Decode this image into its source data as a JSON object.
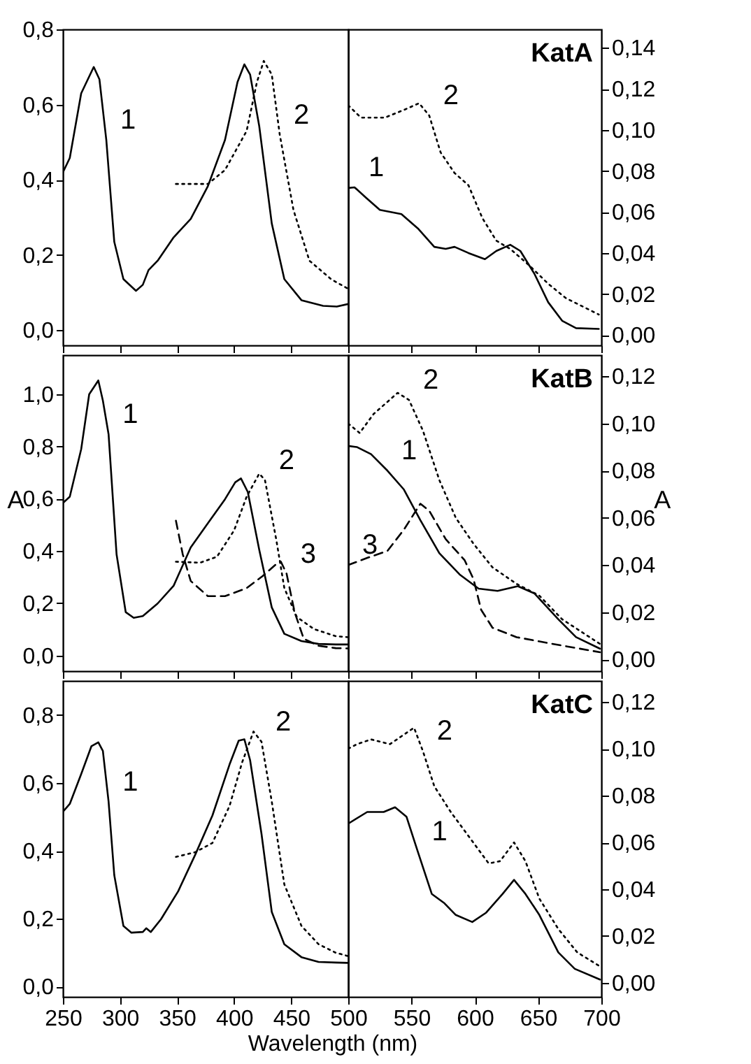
{
  "chart_data": [
    {
      "type": "line",
      "xlim": [
        250,
        500
      ],
      "xticks": [
        250,
        300,
        350,
        400,
        450
      ],
      "ylim": [
        -0.04,
        0.8
      ],
      "yticks": [
        {
          "value": 0,
          "label": "0,0"
        },
        {
          "value": 0.2,
          "label": "0,2"
        },
        {
          "value": 0.4,
          "label": "0,4"
        },
        {
          "value": 0.6,
          "label": "0,6"
        },
        {
          "value": 0.8,
          "label": "0,8"
        }
      ],
      "tick_labels": "y",
      "grid": false,
      "series": [
        {
          "color": "#000000",
          "line_style": "solid",
          "x": [
            250,
            256,
            266,
            277,
            282,
            288,
            295,
            303,
            314,
            320,
            325,
            333,
            347,
            362,
            377,
            392,
            403,
            409,
            414,
            422,
            433,
            444,
            459,
            478,
            490,
            500
          ],
          "values": [
            0.42,
            0.458,
            0.63,
            0.7,
            0.667,
            0.506,
            0.235,
            0.136,
            0.105,
            0.121,
            0.16,
            0.185,
            0.247,
            0.296,
            0.383,
            0.506,
            0.66,
            0.707,
            0.68,
            0.543,
            0.284,
            0.136,
            0.08,
            0.065,
            0.063,
            0.07
          ]
        },
        {
          "color": "#000000",
          "line_style": "dotted",
          "x": [
            349,
            377,
            392,
            411,
            420,
            426,
            433,
            440,
            452,
            466,
            485,
            500
          ],
          "values": [
            0.389,
            0.389,
            0.426,
            0.53,
            0.66,
            0.716,
            0.68,
            0.52,
            0.32,
            0.185,
            0.136,
            0.11
          ]
        }
      ],
      "annotations": [
        {
          "text": "1",
          "x": 288,
          "y": 0.506
        },
        {
          "text": "2",
          "x": 440,
          "y": 0.52
        }
      ]
    },
    {
      "type": "line",
      "title": "KatA",
      "xlim": [
        500,
        700
      ],
      "xticks": [
        500,
        550,
        600,
        650,
        700
      ],
      "ylim": [
        -0.005,
        0.149
      ],
      "yticks": [
        {
          "value": 0,
          "label": "0,00"
        },
        {
          "value": 0.02,
          "label": "0,02"
        },
        {
          "value": 0.04,
          "label": "0,04"
        },
        {
          "value": 0.06,
          "label": "0,06"
        },
        {
          "value": 0.08,
          "label": "0,08"
        },
        {
          "value": 0.1,
          "label": "0,10"
        },
        {
          "value": 0.12,
          "label": "0,12"
        },
        {
          "value": 0.14,
          "label": "0,14"
        }
      ],
      "tick_labels": "y",
      "grid": false,
      "series": [
        {
          "color": "#000000",
          "line_style": "solid",
          "x": [
            500,
            505,
            514,
            525,
            542,
            555,
            568,
            577,
            584,
            595,
            608,
            617,
            628,
            636,
            647,
            658,
            669,
            680,
            698
          ],
          "values": [
            0.0717,
            0.072,
            0.067,
            0.061,
            0.059,
            0.052,
            0.043,
            0.042,
            0.043,
            0.04,
            0.037,
            0.041,
            0.044,
            0.041,
            0.03,
            0.016,
            0.007,
            0.0034,
            0.003
          ]
        },
        {
          "color": "#000000",
          "line_style": "dotted",
          "x": [
            500,
            510,
            529,
            545,
            556,
            564,
            573,
            584,
            595,
            606,
            617,
            628,
            643,
            658,
            672,
            698
          ],
          "values": [
            0.112,
            0.106,
            0.106,
            0.11,
            0.113,
            0.107,
            0.089,
            0.079,
            0.073,
            0.057,
            0.046,
            0.042,
            0.034,
            0.025,
            0.018,
            0.01
          ]
        }
      ],
      "annotations": [
        {
          "text": "1",
          "x": 505,
          "y": 0.072
        },
        {
          "text": "2",
          "x": 564,
          "y": 0.107
        }
      ]
    },
    {
      "type": "line",
      "xlim": [
        250,
        500
      ],
      "xticks": [
        250,
        300,
        350,
        400,
        450
      ],
      "ylim": [
        -0.06,
        1.15
      ],
      "yticks": [
        {
          "value": 0,
          "label": "0,0"
        },
        {
          "value": 0.2,
          "label": "0,2"
        },
        {
          "value": 0.4,
          "label": "0,4"
        },
        {
          "value": 0.6,
          "label": "0,6"
        },
        {
          "value": 0.8,
          "label": "0,8"
        },
        {
          "value": 1,
          "label": "1,0"
        }
      ],
      "ylabel": "A",
      "tick_labels": "y",
      "grid": false,
      "series": [
        {
          "color": "#000000",
          "line_style": "solid",
          "x": [
            250,
            256,
            266,
            273,
            281,
            285,
            290,
            297,
            305,
            312,
            320,
            333,
            347,
            362,
            377,
            392,
            401,
            406,
            412,
            422,
            433,
            444,
            459,
            474,
            489,
            500
          ],
          "values": [
            0.584,
            0.608,
            0.79,
            1.0,
            1.053,
            0.976,
            0.847,
            0.387,
            0.166,
            0.144,
            0.151,
            0.199,
            0.267,
            0.414,
            0.506,
            0.598,
            0.663,
            0.678,
            0.626,
            0.405,
            0.184,
            0.083,
            0.055,
            0.044,
            0.042,
            0.042
          ]
        },
        {
          "color": "#000000",
          "line_style": "dotted",
          "x": [
            349,
            370,
            385,
            400,
            411,
            422,
            427,
            437,
            444,
            455,
            470,
            489,
            500
          ],
          "values": [
            0.359,
            0.355,
            0.378,
            0.479,
            0.608,
            0.696,
            0.672,
            0.442,
            0.258,
            0.147,
            0.101,
            0.074,
            0.07
          ]
        },
        {
          "color": "#000000",
          "line_style": "dashed",
          "x": [
            349,
            355,
            362,
            377,
            392,
            411,
            425,
            437,
            441,
            446,
            453,
            461,
            474,
            489,
            500
          ],
          "values": [
            0.516,
            0.387,
            0.285,
            0.227,
            0.227,
            0.258,
            0.304,
            0.35,
            0.359,
            0.313,
            0.166,
            0.064,
            0.037,
            0.028,
            0.027
          ]
        }
      ],
      "annotations": [
        {
          "text": "1",
          "x": 290,
          "y": 0.847
        },
        {
          "text": "2",
          "x": 427,
          "y": 0.672
        },
        {
          "text": "3",
          "x": 446,
          "y": 0.313
        }
      ]
    },
    {
      "type": "line",
      "title": "KatB",
      "xlim": [
        500,
        700
      ],
      "xticks": [
        500,
        550,
        600,
        650,
        700
      ],
      "ylim": [
        -0.005,
        0.129
      ],
      "yticks": [
        {
          "value": 0,
          "label": "0,00"
        },
        {
          "value": 0.02,
          "label": "0,02"
        },
        {
          "value": 0.04,
          "label": "0,04"
        },
        {
          "value": 0.06,
          "label": "0,06"
        },
        {
          "value": 0.08,
          "label": "0,08"
        },
        {
          "value": 0.1,
          "label": "0,10"
        },
        {
          "value": 0.12,
          "label": "0,12"
        }
      ],
      "ylabel": "A",
      "tick_labels": "y",
      "grid": false,
      "series": [
        {
          "color": "#000000",
          "line_style": "solid",
          "x": [
            500,
            507,
            518,
            531,
            544,
            557,
            572,
            588,
            603,
            618,
            634,
            647,
            666,
            680,
            699
          ],
          "values": [
            0.0905,
            0.09,
            0.087,
            0.08,
            0.072,
            0.059,
            0.045,
            0.036,
            0.03,
            0.029,
            0.031,
            0.028,
            0.017,
            0.0094,
            0.0045
          ]
        },
        {
          "color": "#000000",
          "line_style": "dotted",
          "x": [
            500,
            509,
            520,
            539,
            548,
            559,
            572,
            585,
            599,
            614,
            633,
            651,
            669,
            699
          ],
          "values": [
            0.1,
            0.096,
            0.104,
            0.113,
            0.11,
            0.097,
            0.076,
            0.06,
            0.049,
            0.039,
            0.032,
            0.027,
            0.017,
            0.0065
          ]
        },
        {
          "color": "#000000",
          "line_style": "dashed",
          "x": [
            500,
            515,
            531,
            544,
            557,
            564,
            577,
            592,
            599,
            605,
            614,
            633,
            662,
            699
          ],
          "values": [
            0.04,
            0.043,
            0.046,
            0.055,
            0.066,
            0.063,
            0.051,
            0.042,
            0.034,
            0.021,
            0.0134,
            0.0094,
            0.0065,
            0.003
          ]
        }
      ],
      "annotations": [
        {
          "text": "1",
          "x": 531,
          "y": 0.08
        },
        {
          "text": "2",
          "x": 548,
          "y": 0.11
        },
        {
          "text": "3",
          "x": 500,
          "y": 0.04
        }
      ]
    },
    {
      "type": "line",
      "xlim": [
        250,
        500
      ],
      "xticks": [
        250,
        300,
        350,
        400,
        450
      ],
      "ylim": [
        -0.03,
        0.9
      ],
      "yticks": [
        {
          "value": 0,
          "label": "0,0"
        },
        {
          "value": 0.2,
          "label": "0,2"
        },
        {
          "value": 0.4,
          "label": "0,4"
        },
        {
          "value": 0.6,
          "label": "0,6"
        },
        {
          "value": 0.8,
          "label": "0,8"
        }
      ],
      "xlabel": "Wavelength (nm)",
      "grid": false,
      "series": [
        {
          "color": "#000000",
          "line_style": "solid",
          "x": [
            250,
            256,
            266,
            275,
            281,
            285,
            290,
            295,
            303,
            310,
            320,
            323,
            327,
            336,
            351,
            366,
            381,
            396,
            404,
            409,
            414,
            424,
            433,
            444,
            459,
            474,
            489,
            500
          ],
          "values": [
            0.515,
            0.538,
            0.626,
            0.708,
            0.719,
            0.694,
            0.545,
            0.328,
            0.179,
            0.159,
            0.161,
            0.172,
            0.161,
            0.199,
            0.281,
            0.389,
            0.504,
            0.654,
            0.724,
            0.728,
            0.667,
            0.45,
            0.22,
            0.125,
            0.087,
            0.073,
            0.071,
            0.07
          ]
        },
        {
          "color": "#000000",
          "line_style": "dotted",
          "x": [
            349,
            366,
            381,
            396,
            407,
            417,
            424,
            433,
            444,
            459,
            474,
            489,
            500
          ],
          "values": [
            0.382,
            0.396,
            0.423,
            0.532,
            0.66,
            0.751,
            0.721,
            0.545,
            0.301,
            0.179,
            0.125,
            0.1,
            0.09
          ]
        }
      ],
      "annotations": [
        {
          "text": "1",
          "x": 290,
          "y": 0.545
        },
        {
          "text": "2",
          "x": 424,
          "y": 0.721
        }
      ]
    },
    {
      "type": "line",
      "title": "KatC",
      "xlim": [
        500,
        700
      ],
      "xticks": [
        500,
        550,
        600,
        650,
        700
      ],
      "ylim": [
        -0.006,
        0.129
      ],
      "yticks": [
        {
          "value": 0,
          "label": "0,00"
        },
        {
          "value": 0.02,
          "label": "0,02"
        },
        {
          "value": 0.04,
          "label": "0,04"
        },
        {
          "value": 0.06,
          "label": "0,06"
        },
        {
          "value": 0.08,
          "label": "0,08"
        },
        {
          "value": 0.1,
          "label": "0,10"
        },
        {
          "value": 0.12,
          "label": "0,12"
        }
      ],
      "grid": false,
      "series": [
        {
          "color": "#000000",
          "line_style": "solid",
          "x": [
            500,
            515,
            528,
            537,
            546,
            555,
            566,
            576,
            585,
            598,
            609,
            622,
            631,
            640,
            651,
            666,
            679,
            699
          ],
          "values": [
            0.068,
            0.073,
            0.073,
            0.075,
            0.071,
            0.056,
            0.038,
            0.034,
            0.029,
            0.026,
            0.03,
            0.038,
            0.044,
            0.038,
            0.029,
            0.013,
            0.006,
            0.0014
          ]
        },
        {
          "color": "#000000",
          "line_style": "dotted",
          "x": [
            500,
            507,
            518,
            533,
            552,
            559,
            568,
            581,
            596,
            611,
            620,
            631,
            640,
            651,
            666,
            681,
            699
          ],
          "values": [
            0.1,
            0.102,
            0.104,
            0.102,
            0.109,
            0.099,
            0.084,
            0.073,
            0.062,
            0.051,
            0.052,
            0.06,
            0.052,
            0.036,
            0.023,
            0.013,
            0.007
          ]
        }
      ],
      "annotations": [
        {
          "text": "1",
          "x": 555,
          "y": 0.056
        },
        {
          "text": "2",
          "x": 559,
          "y": 0.099
        }
      ]
    }
  ]
}
